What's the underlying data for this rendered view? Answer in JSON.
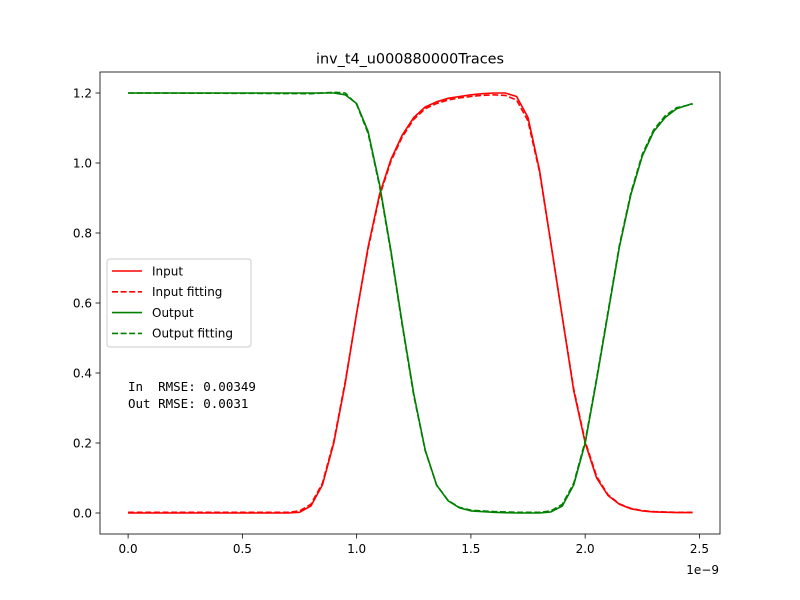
{
  "chart_data": {
    "type": "line",
    "title": "inv_t4_u000880000Traces",
    "xlabel": "",
    "ylabel": "",
    "x_offset_label": "1e−9",
    "xlim": [
      -0.123,
      2.59
    ],
    "ylim": [
      -0.06,
      1.26
    ],
    "x_ticks": [
      0.0,
      0.5,
      1.0,
      1.5,
      2.0,
      2.5
    ],
    "x_tick_labels": [
      "0.0",
      "0.5",
      "1.0",
      "1.5",
      "2.0",
      "2.5"
    ],
    "y_ticks": [
      0.0,
      0.2,
      0.4,
      0.6,
      0.8,
      1.0,
      1.2
    ],
    "y_tick_labels": [
      "0.0",
      "0.2",
      "0.4",
      "0.6",
      "0.8",
      "1.0",
      "1.2"
    ],
    "grid": false,
    "legend_position": "center-left",
    "annotation_lines": [
      "In  RMSE: 0.00349",
      "Out RMSE: 0.0031"
    ],
    "series": [
      {
        "name": "Input",
        "color": "#ff0000",
        "dash": "solid",
        "x": [
          0.0,
          0.7,
          0.75,
          0.8,
          0.85,
          0.9,
          0.95,
          1.0,
          1.05,
          1.1,
          1.15,
          1.2,
          1.25,
          1.3,
          1.35,
          1.4,
          1.45,
          1.5,
          1.55,
          1.6,
          1.65,
          1.7,
          1.75,
          1.8,
          1.85,
          1.9,
          1.95,
          2.0,
          2.05,
          2.1,
          2.15,
          2.2,
          2.25,
          2.3,
          2.4,
          2.47
        ],
        "y": [
          0.0,
          0.0,
          0.002,
          0.02,
          0.08,
          0.2,
          0.37,
          0.57,
          0.76,
          0.91,
          1.01,
          1.08,
          1.13,
          1.16,
          1.175,
          1.185,
          1.19,
          1.195,
          1.198,
          1.2,
          1.2,
          1.19,
          1.13,
          0.98,
          0.77,
          0.56,
          0.35,
          0.2,
          0.1,
          0.05,
          0.025,
          0.012,
          0.006,
          0.003,
          0.001,
          0.001
        ]
      },
      {
        "name": "Input fitting",
        "color": "#ff0000",
        "dash": "dashed",
        "x": [
          0.0,
          0.7,
          0.75,
          0.8,
          0.85,
          0.9,
          0.95,
          1.0,
          1.05,
          1.1,
          1.15,
          1.2,
          1.25,
          1.3,
          1.35,
          1.4,
          1.45,
          1.5,
          1.55,
          1.6,
          1.65,
          1.7,
          1.75,
          1.8,
          1.85,
          1.9,
          1.95,
          2.0,
          2.05,
          2.1,
          2.15,
          2.2,
          2.25,
          2.3,
          2.4,
          2.47
        ],
        "y": [
          0.002,
          0.002,
          0.006,
          0.025,
          0.085,
          0.205,
          0.375,
          0.57,
          0.755,
          0.905,
          1.005,
          1.075,
          1.125,
          1.155,
          1.17,
          1.18,
          1.186,
          1.19,
          1.193,
          1.195,
          1.193,
          1.18,
          1.12,
          0.975,
          0.77,
          0.56,
          0.355,
          0.205,
          0.105,
          0.052,
          0.026,
          0.013,
          0.007,
          0.004,
          0.002,
          0.002
        ]
      },
      {
        "name": "Output",
        "color": "#008000",
        "dash": "solid",
        "x": [
          0.0,
          0.5,
          0.8,
          0.9,
          0.95,
          1.0,
          1.05,
          1.1,
          1.15,
          1.2,
          1.25,
          1.3,
          1.35,
          1.4,
          1.45,
          1.5,
          1.6,
          1.7,
          1.8,
          1.85,
          1.9,
          1.95,
          2.0,
          2.05,
          2.1,
          2.15,
          2.2,
          2.25,
          2.3,
          2.35,
          2.4,
          2.47
        ],
        "y": [
          1.2,
          1.2,
          1.2,
          1.2,
          1.195,
          1.17,
          1.09,
          0.94,
          0.75,
          0.54,
          0.34,
          0.18,
          0.08,
          0.035,
          0.015,
          0.006,
          0.002,
          0.0,
          0.0,
          0.003,
          0.02,
          0.08,
          0.2,
          0.38,
          0.57,
          0.76,
          0.91,
          1.02,
          1.09,
          1.13,
          1.155,
          1.17
        ]
      },
      {
        "name": "Output fitting",
        "color": "#008000",
        "dash": "dashed",
        "x": [
          0.0,
          0.5,
          0.8,
          0.9,
          0.95,
          1.0,
          1.05,
          1.1,
          1.15,
          1.2,
          1.25,
          1.3,
          1.35,
          1.4,
          1.45,
          1.5,
          1.6,
          1.7,
          1.8,
          1.85,
          1.9,
          1.95,
          2.0,
          2.05,
          2.1,
          2.15,
          2.2,
          2.25,
          2.3,
          2.35,
          2.4,
          2.47
        ],
        "y": [
          1.2,
          1.199,
          1.198,
          1.202,
          1.2,
          1.168,
          1.085,
          0.935,
          0.745,
          0.535,
          0.335,
          0.178,
          0.08,
          0.036,
          0.016,
          0.008,
          0.004,
          0.002,
          0.002,
          0.006,
          0.025,
          0.085,
          0.205,
          0.385,
          0.575,
          0.765,
          0.915,
          1.025,
          1.095,
          1.135,
          1.158,
          1.168
        ]
      }
    ]
  }
}
